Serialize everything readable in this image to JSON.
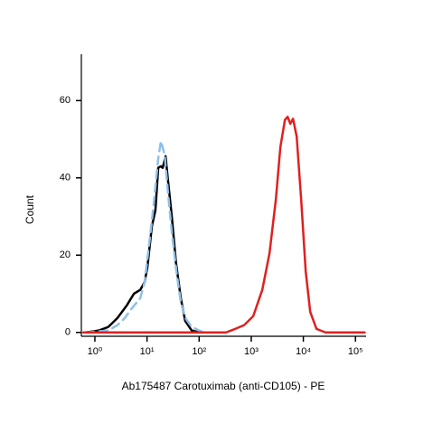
{
  "chart_data": {
    "type": "line",
    "x_label": "Ab175487 Carotuximab (anti-CD105) - PE",
    "y_label": "Count",
    "xscale": "log",
    "xlim": [
      0.55,
      160000
    ],
    "xticks": [
      {
        "value": 1,
        "label": "10⁰"
      },
      {
        "value": 10,
        "label": "10¹"
      },
      {
        "value": 100,
        "label": "10²"
      },
      {
        "value": 1000,
        "label": "10³"
      },
      {
        "value": 10000,
        "label": "10⁴"
      },
      {
        "value": 100000,
        "label": "10⁵"
      }
    ],
    "ylim": [
      -1,
      72
    ],
    "yticks": [
      0,
      20,
      40,
      60
    ],
    "series": [
      {
        "color": "#000000",
        "dash": false,
        "x": [
          0.67,
          1.2,
          1.8,
          2.7,
          4.1,
          5.6,
          7.4,
          9.0,
          10.2,
          12.4,
          14.5,
          16.4,
          18.5,
          20,
          22.7,
          25,
          30,
          36,
          44.6,
          54,
          72,
          100
        ],
        "values": [
          0,
          0.5,
          1.4,
          3.7,
          7,
          10,
          11,
          13,
          17,
          27.5,
          31.6,
          42.6,
          43,
          42.6,
          45.6,
          40,
          29.8,
          18,
          8.8,
          3,
          0.5,
          0
        ]
      },
      {
        "color": "#8fbfe8",
        "dash": true,
        "x": [
          0.67,
          1.82,
          2.71,
          3.74,
          4.95,
          6.04,
          7.38,
          9.0,
          11,
          13.4,
          16.4,
          18.5,
          21.8,
          25.5,
          29.9,
          36.6,
          44.7,
          54.6,
          72,
          121
        ],
        "values": [
          0,
          0.5,
          1.9,
          3.7,
          6,
          7.4,
          8.8,
          13,
          22.8,
          33,
          45,
          49.5,
          46,
          35.6,
          26,
          15.8,
          7.7,
          3.7,
          1.4,
          0
        ]
      },
      {
        "color": "#e02020",
        "dash": false,
        "x": [
          0.6,
          329,
          491,
          732,
          1092,
          1629,
          2243,
          2967,
          3624,
          4426,
          4989,
          5623,
          6339,
          7447,
          9083,
          11090,
          13550,
          17910,
          26700,
          150000
        ],
        "values": [
          0,
          0,
          0.9,
          1.9,
          4.2,
          11,
          20.5,
          34.4,
          48,
          55,
          55.8,
          54,
          55.3,
          50.7,
          34.4,
          15.8,
          5.3,
          0.9,
          0,
          0
        ]
      }
    ]
  }
}
